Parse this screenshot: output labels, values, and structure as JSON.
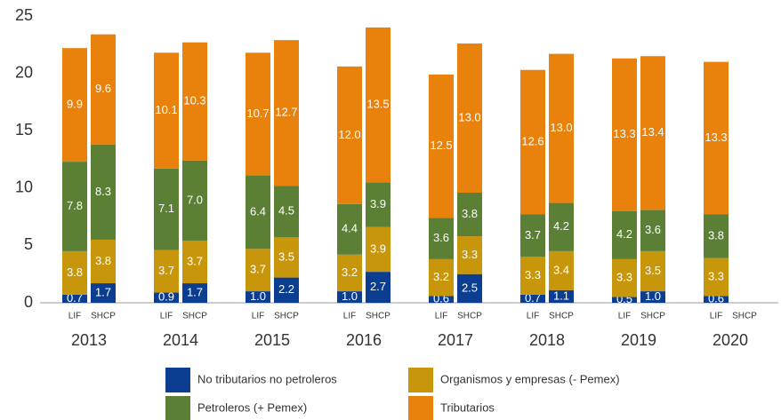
{
  "chart_data": {
    "type": "stacked_bar",
    "groups": [
      "2013",
      "2014",
      "2015",
      "2016",
      "2017",
      "2018",
      "2019",
      "2020"
    ],
    "categories": [
      "LIF",
      "SHCP",
      "LIF",
      "SHCP",
      "LIF",
      "SHCP",
      "LIF",
      "SHCP",
      "LIF",
      "SHCP",
      "LIF",
      "SHCP",
      "LIF",
      "SHCP",
      "LIF",
      "SHCP"
    ],
    "series": [
      {
        "name": "No tributarios no petroleros",
        "color": "#0b3d91",
        "values": [
          0.7,
          1.7,
          0.9,
          1.7,
          1.0,
          2.2,
          1.0,
          2.7,
          0.6,
          2.5,
          0.7,
          1.1,
          0.5,
          1.0,
          0.6,
          null
        ],
        "value_labels": [
          "0.7",
          "1.7",
          "0.9",
          "1.7",
          "1.0",
          "2.2",
          "1.0",
          "2.7",
          "0.6",
          "2.5",
          "0.7",
          "1.1",
          "0.5",
          "1.0",
          "0.6",
          null
        ]
      },
      {
        "name": "Organismos y empresas (- Pemex)",
        "color": "#c8960a",
        "values": [
          3.8,
          3.8,
          3.7,
          3.7,
          3.7,
          3.5,
          3.2,
          3.9,
          3.2,
          3.3,
          3.3,
          3.4,
          3.3,
          3.5,
          3.3,
          null
        ],
        "value_labels": [
          "3.8",
          "3.8",
          "3.7",
          "3.7",
          "3.7",
          "3.5",
          "3.2",
          "3.9",
          "3.2",
          "3.3",
          "3.3",
          "3.4",
          "3.3",
          "3.5",
          "3.3",
          null
        ]
      },
      {
        "name": "Petroleros (+ Pemex)",
        "color": "#5a7f35",
        "values": [
          7.8,
          8.3,
          7.1,
          7.0,
          6.4,
          4.5,
          4.4,
          3.9,
          3.6,
          3.8,
          3.7,
          4.2,
          4.2,
          3.6,
          3.8,
          null
        ],
        "value_labels": [
          "7.8",
          "8.3",
          "7.1",
          "7.0",
          "6.4",
          "4.5",
          "4.4",
          "3.9",
          "3.6",
          "3.8",
          "3.7",
          "4.2",
          "4.2",
          "3.6",
          "3.8",
          null
        ]
      },
      {
        "name": "Tributarios",
        "color": "#e8820c",
        "values": [
          9.9,
          9.6,
          10.1,
          10.3,
          10.7,
          12.7,
          12.0,
          13.5,
          12.5,
          13.0,
          12.6,
          13.0,
          13.3,
          13.4,
          13.3,
          null
        ],
        "value_labels": [
          "9.9",
          "9.6",
          "10.1",
          "10.3",
          "10.7",
          "12.7",
          "12.0",
          "13.5",
          "12.5",
          "13.0",
          "12.6",
          "13.0",
          "13.3",
          "13.4",
          "13.3",
          null
        ]
      }
    ],
    "ylim": [
      0,
      25
    ],
    "yticks": [
      0,
      5,
      10,
      15,
      20,
      25
    ],
    "grid": false
  }
}
